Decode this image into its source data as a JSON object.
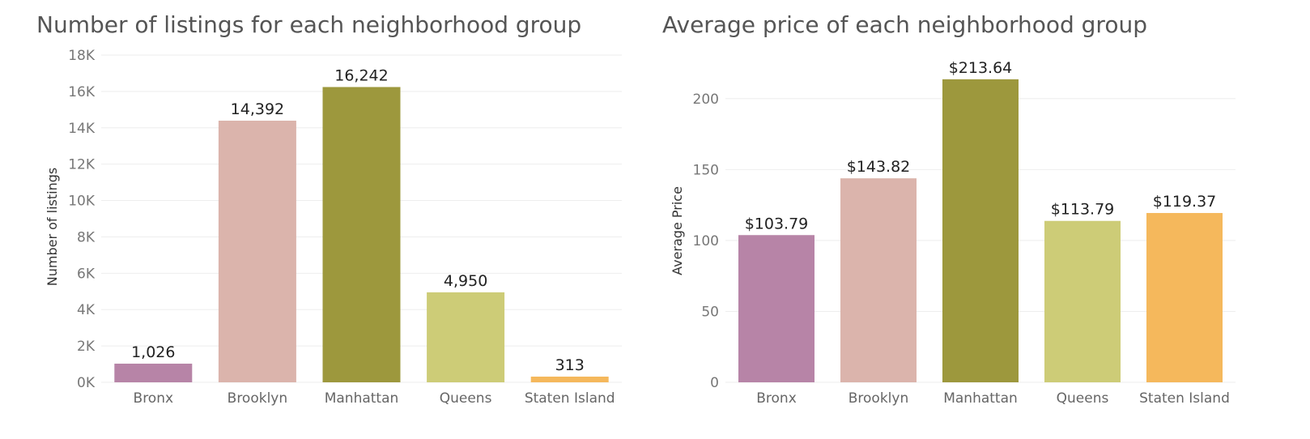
{
  "colors": {
    "Bronx": "#b784a7",
    "Brooklyn": "#dbb4ac",
    "Manhattan": "#9d983d",
    "Queens": "#cdcc77",
    "Staten Island": "#f5b85c"
  },
  "chart_data": [
    {
      "type": "bar",
      "title": "Number of listings for each neighborhood group",
      "xlabel": "",
      "ylabel": "Number of listings",
      "categories": [
        "Bronx",
        "Brooklyn",
        "Manhattan",
        "Queens",
        "Staten Island"
      ],
      "values": [
        1026,
        14392,
        16242,
        4950,
        313
      ],
      "value_labels": [
        "1,026",
        "14,392",
        "16,242",
        "4,950",
        "313"
      ],
      "ylim": [
        0,
        18000
      ],
      "yticks": [
        0,
        2000,
        4000,
        6000,
        8000,
        10000,
        12000,
        14000,
        16000,
        18000
      ],
      "ytick_labels": [
        "0K",
        "2K",
        "4K",
        "6K",
        "8K",
        "10K",
        "12K",
        "14K",
        "16K",
        "18K"
      ],
      "grid": true
    },
    {
      "type": "bar",
      "title": "Average price of each neighborhood group",
      "xlabel": "",
      "ylabel": "Average Price",
      "categories": [
        "Bronx",
        "Brooklyn",
        "Manhattan",
        "Queens",
        "Staten Island"
      ],
      "values": [
        103.79,
        143.82,
        213.64,
        113.79,
        119.37
      ],
      "value_labels": [
        "$103.79",
        "$143.82",
        "$213.64",
        "$113.79",
        "$119.37"
      ],
      "ylim": [
        0,
        225
      ],
      "yticks": [
        0,
        50,
        100,
        150,
        200
      ],
      "ytick_labels": [
        "0",
        "50",
        "100",
        "150",
        "200"
      ],
      "grid": true
    }
  ]
}
